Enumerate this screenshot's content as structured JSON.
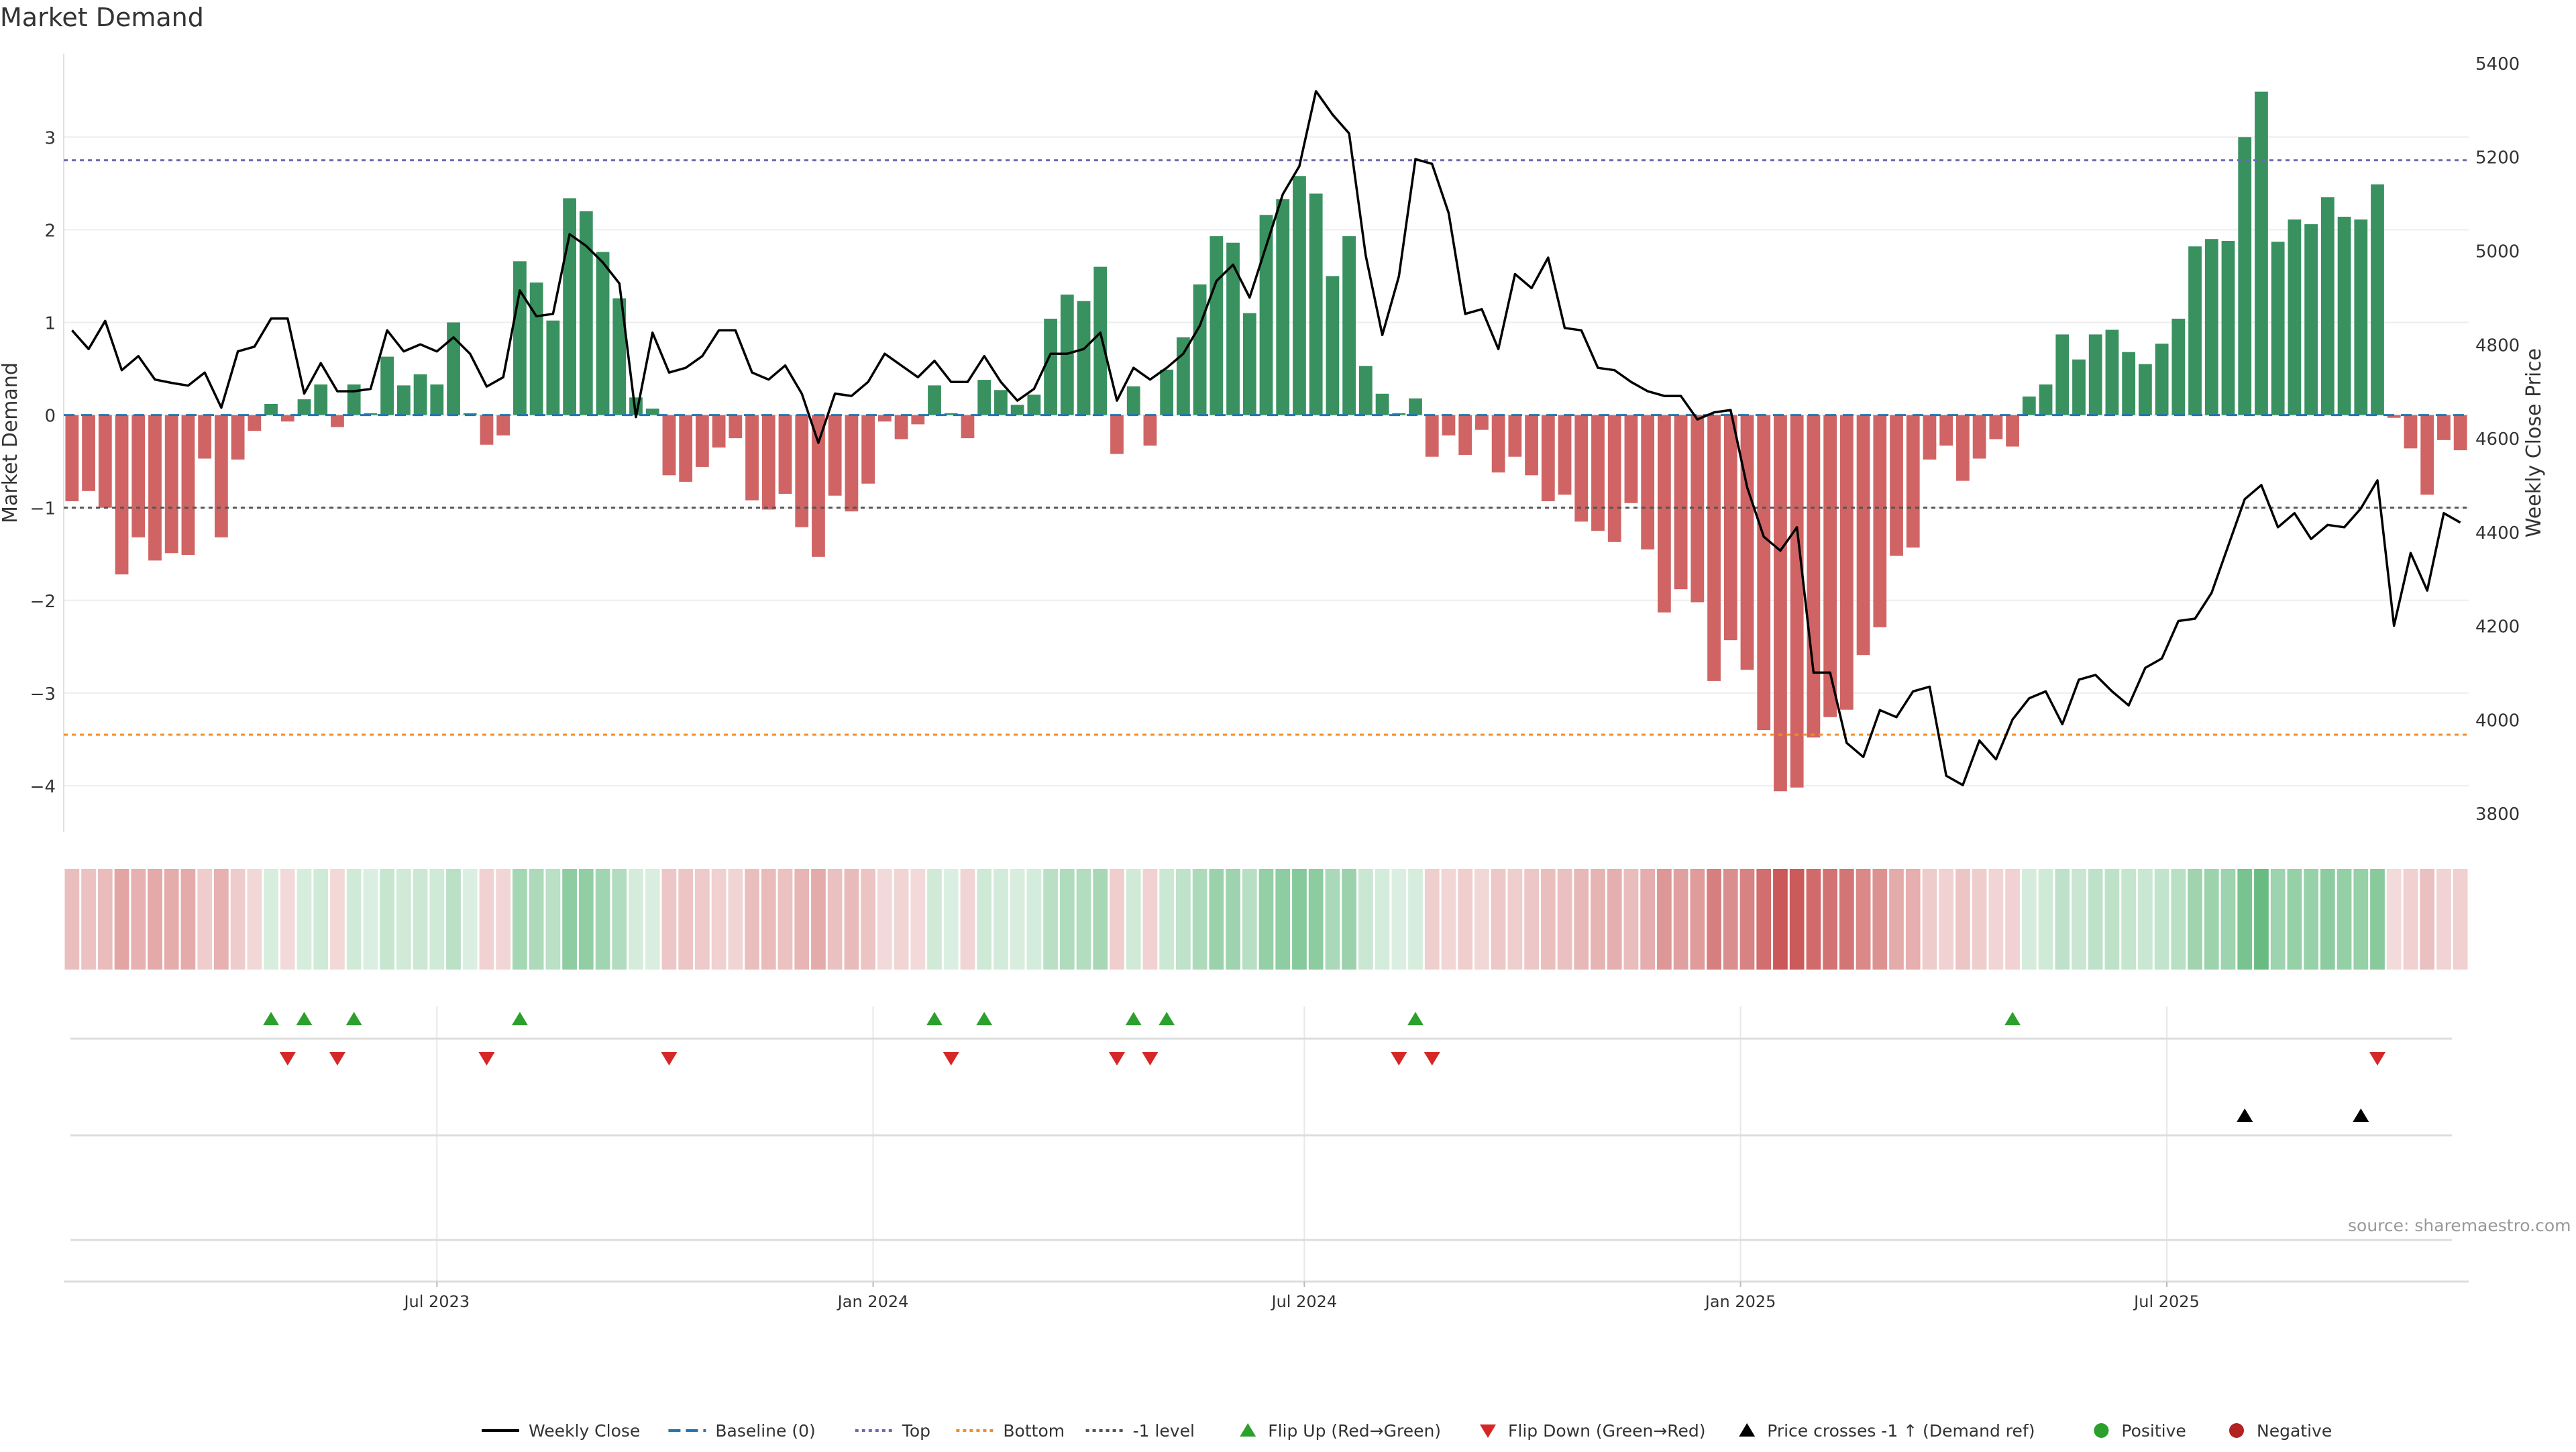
{
  "chart_data": {
    "type": "bar",
    "title": "Market Demand",
    "ylabel": "Market Demand",
    "y2label": "Weekly Close Price",
    "ylim": [
      -4.5,
      3.9
    ],
    "y2lim": [
      3760,
      5420
    ],
    "yticks": [
      3,
      2,
      1,
      0,
      -1,
      -2,
      -3,
      -4
    ],
    "y2ticks": [
      5400,
      5200,
      5000,
      4800,
      4600,
      4400,
      4200,
      4000,
      3800
    ],
    "xticks": [
      "Jul 2023",
      "Jan 2024",
      "Jul 2024",
      "Jan 2025",
      "Jul 2025"
    ],
    "xtick_weeks": [
      22,
      48.3,
      74.3,
      100.6,
      126.3
    ],
    "reference_lines": {
      "top": 2.75,
      "bottom": -3.45,
      "minus_one": -1,
      "baseline": 0
    },
    "demand": [
      -0.93,
      -0.82,
      -1.0,
      -1.72,
      -1.32,
      -1.57,
      -1.49,
      -1.51,
      -0.47,
      -1.32,
      -0.48,
      -0.17,
      0.12,
      -0.07,
      0.17,
      0.33,
      -0.13,
      0.33,
      0.02,
      0.63,
      0.32,
      0.44,
      0.33,
      1.0,
      0.02,
      -0.32,
      -0.22,
      1.66,
      1.43,
      1.02,
      2.34,
      2.2,
      1.76,
      1.26,
      0.19,
      0.07,
      -0.65,
      -0.72,
      -0.56,
      -0.35,
      -0.25,
      -0.92,
      -1.02,
      -0.85,
      -1.21,
      -1.53,
      -0.87,
      -1.04,
      -0.74,
      -0.07,
      -0.26,
      -0.1,
      0.32,
      0.02,
      -0.25,
      0.38,
      0.27,
      0.11,
      0.22,
      1.04,
      1.3,
      1.23,
      1.6,
      -0.42,
      0.31,
      -0.33,
      0.49,
      0.84,
      1.41,
      1.93,
      1.86,
      1.1,
      2.16,
      2.33,
      2.58,
      2.39,
      1.5,
      1.93,
      0.53,
      0.23,
      0.02,
      0.18,
      -0.45,
      -0.22,
      -0.43,
      -0.16,
      -0.62,
      -0.45,
      -0.65,
      -0.93,
      -0.86,
      -1.15,
      -1.25,
      -1.37,
      -0.95,
      -1.45,
      -2.13,
      -1.88,
      -2.02,
      -2.87,
      -2.43,
      -2.75,
      -3.4,
      -4.06,
      -4.02,
      -3.48,
      -3.26,
      -3.18,
      -2.59,
      -2.29,
      -1.52,
      -1.43,
      -0.48,
      -0.33,
      -0.71,
      -0.47,
      -0.26,
      -0.34,
      0.2,
      0.33,
      0.87,
      0.6,
      0.87,
      0.92,
      0.68,
      0.55,
      0.77,
      1.04,
      1.82,
      1.9,
      1.88,
      3.0,
      3.49,
      1.87,
      2.11,
      2.06,
      2.35,
      2.14,
      2.11,
      2.49,
      -0.03,
      -0.36,
      -0.86,
      -0.27,
      -0.38
    ],
    "series": [
      {
        "name": "Weekly Close",
        "values": [
          4830,
          4790,
          4850,
          4745,
          4775,
          4725,
          4718,
          4712,
          4740,
          4665,
          4785,
          4795,
          4855,
          4855,
          4695,
          4760,
          4700,
          4700,
          4705,
          4830,
          4785,
          4800,
          4785,
          4815,
          4780,
          4710,
          4730,
          4915,
          4860,
          4865,
          5035,
          5010,
          4975,
          4930,
          4645,
          4825,
          4740,
          4750,
          4775,
          4830,
          4830,
          4740,
          4725,
          4755,
          4695,
          4590,
          4695,
          4690,
          4720,
          4780,
          4755,
          4730,
          4765,
          4720,
          4720,
          4775,
          4720,
          4680,
          4705,
          4780,
          4780,
          4790,
          4825,
          4680,
          4750,
          4725,
          4750,
          4780,
          4840,
          4935,
          4970,
          4900,
          5010,
          5120,
          5180,
          5340,
          5290,
          5250,
          4990,
          4820,
          4945,
          5195,
          5185,
          5080,
          4865,
          4875,
          4790,
          4950,
          4920,
          4985,
          4835,
          4830,
          4750,
          4745,
          4720,
          4700,
          4690,
          4690,
          4640,
          4655,
          4660,
          4495,
          4390,
          4360,
          4410,
          4100,
          4100,
          3950,
          3920,
          4020,
          4005,
          4060,
          4070,
          3880,
          3860,
          3955,
          3915,
          4000,
          4045,
          4060,
          3990,
          4085,
          4095,
          4060,
          4030,
          4110,
          4130,
          4210,
          4215,
          4270,
          4370,
          4470,
          4500,
          4410,
          4440,
          4385,
          4415,
          4410,
          4450,
          4510,
          4200,
          4355,
          4275,
          4440,
          4420
        ]
      },
      {
        "name": "Baseline (0)",
        "values": []
      },
      {
        "name": "Top",
        "values": []
      },
      {
        "name": "Bottom",
        "values": []
      },
      {
        "name": "-1 level",
        "values": []
      }
    ],
    "flip_up_weeks": [
      12,
      14,
      17,
      27,
      52,
      55,
      64,
      66,
      81,
      117
    ],
    "flip_down_weeks": [
      13,
      16,
      25,
      36,
      53,
      63,
      65,
      80,
      82,
      139
    ],
    "price_cross_weeks": [
      131,
      138
    ],
    "legend": [
      {
        "label": "Weekly Close",
        "kind": "line",
        "color": "#000000"
      },
      {
        "label": "Baseline (0)",
        "kind": "dash",
        "color": "#1f77b4"
      },
      {
        "label": "Top",
        "kind": "dot",
        "color": "#6b6bb3"
      },
      {
        "label": "Bottom",
        "kind": "dot",
        "color": "#f28c28"
      },
      {
        "label": "-1 level",
        "kind": "dot",
        "color": "#555555"
      },
      {
        "label": "Flip Up (Red→Green)",
        "kind": "tri-up",
        "color": "#2ca02c"
      },
      {
        "label": "Flip Down (Green→Red)",
        "kind": "tri-down",
        "color": "#d62728"
      },
      {
        "label": "Price crosses -1 ↑ (Demand ref)",
        "kind": "tri-up",
        "color": "#000000"
      },
      {
        "label": "Positive",
        "kind": "dot-marker",
        "color": "#2ca02c"
      },
      {
        "label": "Negative",
        "kind": "dot-marker",
        "color": "#b22222"
      }
    ],
    "colors": {
      "positive": "#2e8b57",
      "negative": "#cd5c5c",
      "flip_up": "#2ca02c",
      "flip_down": "#d62728",
      "cross": "#000000"
    },
    "source": "source: sharemaestro.com"
  }
}
